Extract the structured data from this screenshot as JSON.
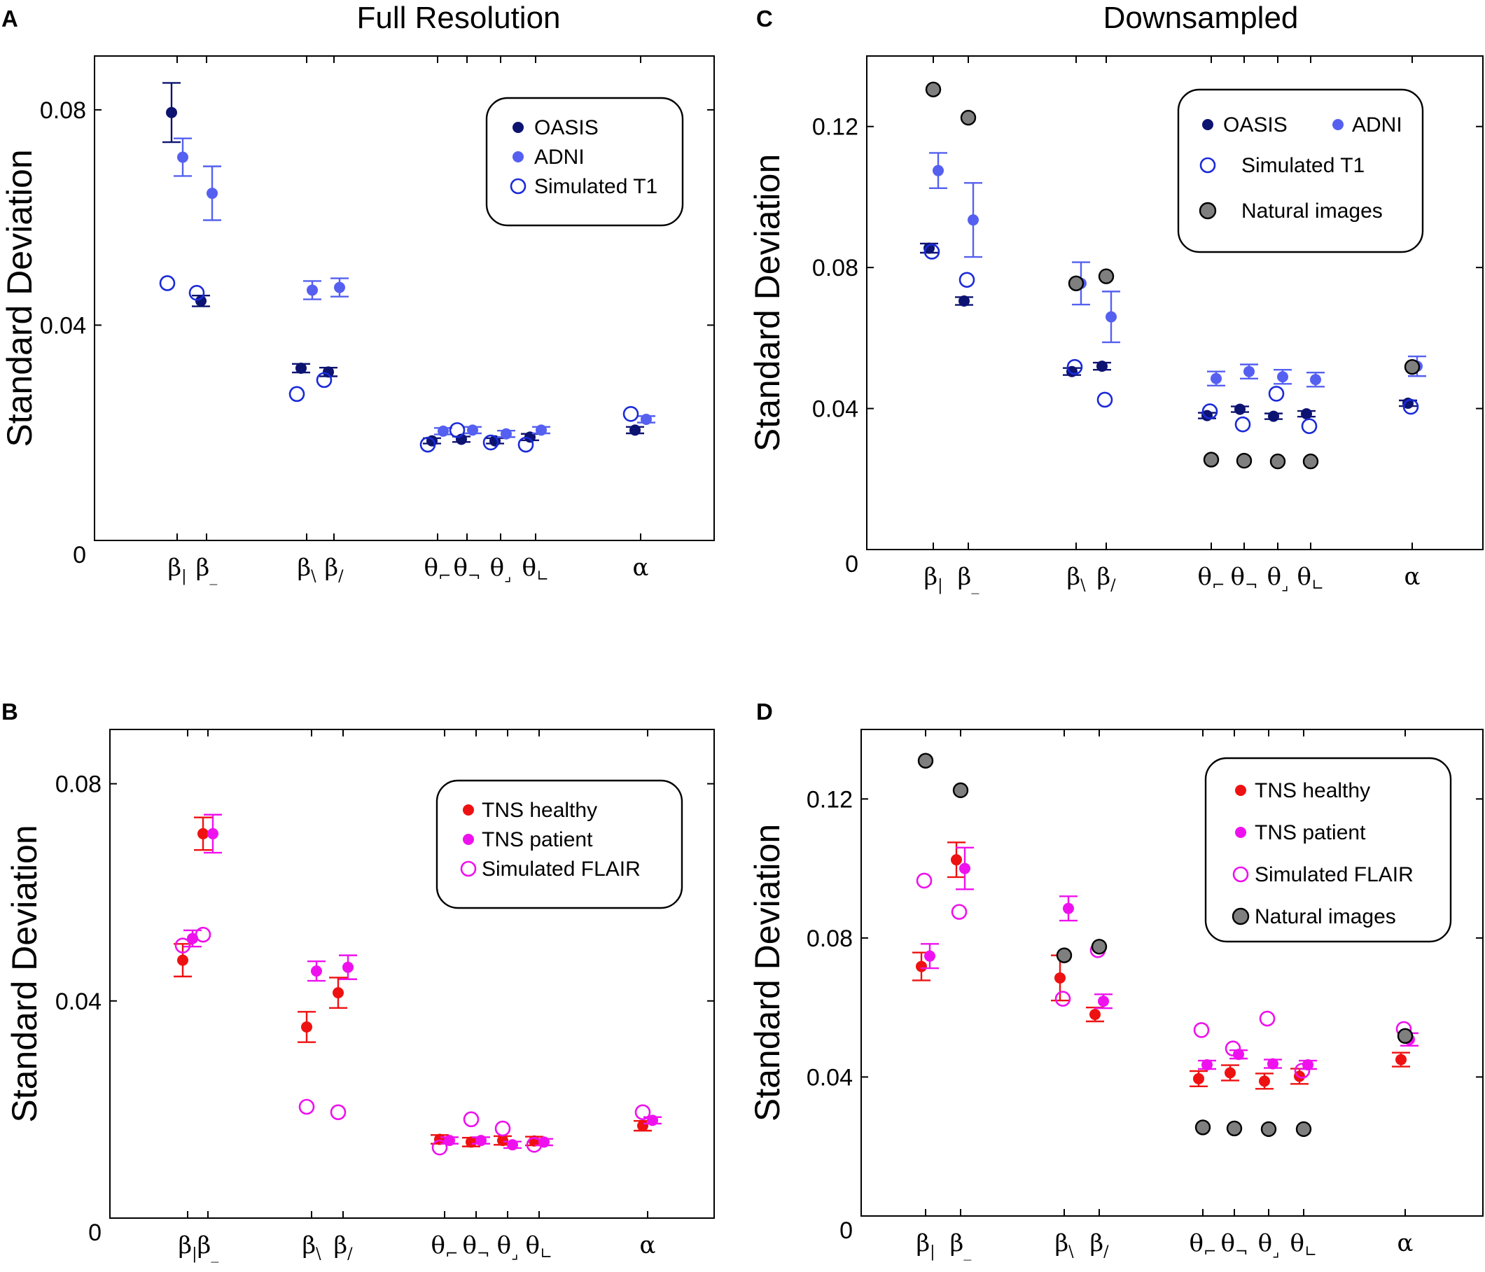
{
  "colors": {
    "oasis": "#0d1370",
    "adni": "#5560f0",
    "simulated_t1": "#1a2ad8",
    "natural": "#7f7f7f",
    "tns_healthy": "#ee1111",
    "tns_patient": "#ee11ee",
    "simulated_flair": "#ee11ee"
  },
  "ylabel": "Standard Deviation",
  "xtick_labels": [
    {
      "base": "β",
      "sub": "|"
    },
    {
      "base": "β",
      "sub": "_"
    },
    {
      "base": "β",
      "sub": "\\"
    },
    {
      "base": "β",
      "sub": "/"
    },
    {
      "base": "θ",
      "sub": "⌐"
    },
    {
      "base": "θ",
      "sub": "¬"
    },
    {
      "base": "θ",
      "sub": "⌟"
    },
    {
      "base": "θ",
      "sub": "∟"
    },
    {
      "base": "α",
      "sub": ""
    }
  ],
  "chart_data": [
    {
      "panel": "A",
      "type": "scatter",
      "title": "Full Resolution",
      "ylim": [
        0,
        0.09
      ],
      "yticks": [
        0,
        0.04,
        0.08
      ],
      "ytick_labels": [
        "0",
        "0.04",
        "0.08"
      ],
      "legend": {
        "entries": [
          {
            "label": "OASIS",
            "series": "oasis"
          },
          {
            "label": "ADNI",
            "series": "adni"
          },
          {
            "label": "Simulated T1",
            "series": "simulated_t1"
          }
        ]
      },
      "series": [
        {
          "name": "OASIS",
          "key": "oasis",
          "marker": "filled",
          "values": [
            0.0795,
            0.0445,
            0.032,
            0.0313,
            0.0185,
            0.0188,
            0.0185,
            0.0192,
            0.0205
          ],
          "errors": [
            0.0055,
            0.001,
            0.0008,
            0.0008,
            0.0005,
            0.0005,
            0.0005,
            0.0006,
            0.0006
          ]
        },
        {
          "name": "ADNI",
          "key": "adni",
          "marker": "filled",
          "values": [
            0.0712,
            0.0645,
            0.0465,
            0.047,
            0.0203,
            0.0205,
            0.0198,
            0.0205,
            0.0225
          ],
          "errors": [
            0.0035,
            0.005,
            0.0017,
            0.0017,
            0.0006,
            0.0006,
            0.0006,
            0.0006,
            0.0006
          ]
        },
        {
          "name": "Simulated T1",
          "key": "simulated_t1",
          "marker": "open",
          "values": [
            0.0478,
            0.046,
            0.0272,
            0.0298,
            0.0178,
            0.0205,
            0.0182,
            0.0178,
            0.0235
          ],
          "errors": null
        }
      ]
    },
    {
      "panel": "B",
      "type": "scatter",
      "title": "",
      "ylim": [
        0,
        0.09
      ],
      "yticks": [
        0,
        0.04,
        0.08
      ],
      "ytick_labels": [
        "0",
        "0.04",
        "0.08"
      ],
      "legend": {
        "entries": [
          {
            "label": "TNS healthy",
            "series": "tns_healthy"
          },
          {
            "label": "TNS patient",
            "series": "tns_patient"
          },
          {
            "label": "Simulated  FLAIR",
            "series": "simulated_flair"
          }
        ]
      },
      "series": [
        {
          "name": "TNS healthy",
          "key": "tns_healthy",
          "marker": "filled",
          "values": [
            0.0475,
            0.0708,
            0.0352,
            0.0415,
            0.0145,
            0.014,
            0.0143,
            0.0142,
            0.017
          ],
          "errors": [
            0.003,
            0.003,
            0.0028,
            0.0028,
            0.0008,
            0.0008,
            0.0008,
            0.0008,
            0.0009
          ]
        },
        {
          "name": "TNS patient",
          "key": "tns_patient",
          "marker": "filled",
          "values": [
            0.0515,
            0.0708,
            0.0455,
            0.0462,
            0.0143,
            0.0143,
            0.0135,
            0.014,
            0.018
          ],
          "errors": [
            0.0015,
            0.0035,
            0.0018,
            0.0022,
            0.0006,
            0.0006,
            0.0006,
            0.0006,
            0.0006
          ]
        },
        {
          "name": "Simulated  FLAIR",
          "key": "simulated_flair",
          "marker": "open",
          "values": [
            0.0502,
            0.0522,
            0.0205,
            0.0195,
            0.013,
            0.0182,
            0.0165,
            0.0135,
            0.0195
          ],
          "errors": null
        }
      ]
    },
    {
      "panel": "C",
      "type": "scatter",
      "title": "Downsampled",
      "ylim": [
        0,
        0.14
      ],
      "yticks": [
        0,
        0.04,
        0.08,
        0.12
      ],
      "ytick_labels": [
        "0",
        "0.04",
        "0.08",
        "0.12"
      ],
      "legend": {
        "entries": [
          {
            "label": "OASIS",
            "series": "oasis"
          },
          {
            "label": "ADNI",
            "series": "adni"
          },
          {
            "label": "Simulated  T1",
            "series": "simulated_t1"
          },
          {
            "label": "Natural images",
            "series": "natural"
          }
        ]
      },
      "series": [
        {
          "name": "OASIS",
          "key": "oasis",
          "marker": "filled",
          "values": [
            0.0855,
            0.0705,
            0.0505,
            0.052,
            0.038,
            0.0398,
            0.0378,
            0.0385,
            0.0415
          ],
          "errors": [
            0.0013,
            0.0011,
            0.001,
            0.001,
            0.0008,
            0.0008,
            0.0008,
            0.0008,
            0.0008
          ]
        },
        {
          "name": "ADNI",
          "key": "adni",
          "marker": "filled",
          "values": [
            0.1075,
            0.0935,
            0.0755,
            0.066,
            0.0485,
            0.0505,
            0.049,
            0.0482,
            0.052
          ],
          "errors": [
            0.005,
            0.0105,
            0.006,
            0.0072,
            0.002,
            0.002,
            0.002,
            0.002,
            0.0028
          ]
        },
        {
          "name": "Simulated  T1",
          "key": "simulated_t1",
          "marker": "open",
          "values": [
            0.0845,
            0.0765,
            0.0518,
            0.0425,
            0.0392,
            0.0355,
            0.0442,
            0.035,
            0.0405
          ],
          "errors": null
        },
        {
          "name": "Natural images",
          "key": "natural",
          "marker": "gray",
          "values": [
            0.1305,
            0.1225,
            0.0755,
            0.0775,
            0.0255,
            0.0252,
            0.025,
            0.025,
            0.0518
          ],
          "errors": null
        }
      ]
    },
    {
      "panel": "D",
      "type": "scatter",
      "title": "",
      "ylim": [
        0,
        0.14
      ],
      "yticks": [
        0,
        0.04,
        0.08,
        0.12
      ],
      "ytick_labels": [
        "0",
        "0.04",
        "0.08",
        "0.12"
      ],
      "legend": {
        "entries": [
          {
            "label": "TNS healthy",
            "series": "tns_healthy"
          },
          {
            "label": "TNS patient",
            "series": "tns_patient"
          },
          {
            "label": "Simulated  FLAIR",
            "series": "simulated_flair"
          },
          {
            "label": "Natural images",
            "series": "natural"
          }
        ]
      },
      "series": [
        {
          "name": "TNS healthy",
          "key": "tns_healthy",
          "marker": "filled",
          "values": [
            0.0718,
            0.1025,
            0.0685,
            0.058,
            0.0395,
            0.0412,
            0.0388,
            0.0402,
            0.045
          ],
          "errors": [
            0.004,
            0.005,
            0.0065,
            0.002,
            0.0022,
            0.0022,
            0.0022,
            0.0022,
            0.002
          ]
        },
        {
          "name": "TNS patient",
          "key": "tns_patient",
          "marker": "filled",
          "values": [
            0.0748,
            0.1,
            0.0885,
            0.0618,
            0.0435,
            0.0465,
            0.0438,
            0.0435,
            0.0508
          ],
          "errors": [
            0.0035,
            0.006,
            0.0035,
            0.002,
            0.0012,
            0.0012,
            0.0012,
            0.0012,
            0.0018
          ]
        },
        {
          "name": "Simulated  FLAIR",
          "key": "simulated_flair",
          "marker": "open",
          "values": [
            0.0965,
            0.0875,
            0.0625,
            0.0765,
            0.0535,
            0.0482,
            0.0568,
            0.0418,
            0.0538
          ],
          "errors": null
        },
        {
          "name": "Natural images",
          "key": "natural",
          "marker": "gray",
          "values": [
            0.131,
            0.1225,
            0.075,
            0.0775,
            0.0255,
            0.0252,
            0.025,
            0.025,
            0.0518
          ],
          "errors": null
        }
      ]
    }
  ]
}
